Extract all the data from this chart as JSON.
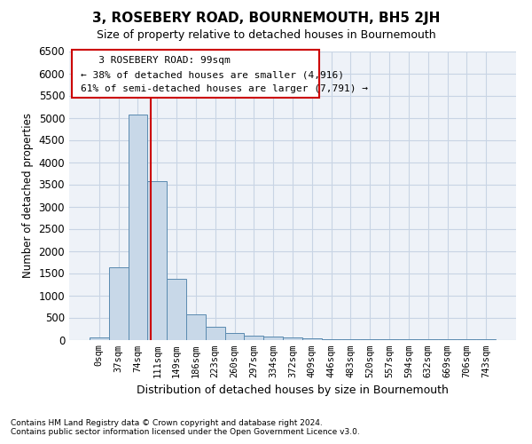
{
  "title": "3, ROSEBERY ROAD, BOURNEMOUTH, BH5 2JH",
  "subtitle": "Size of property relative to detached houses in Bournemouth",
  "xlabel": "Distribution of detached houses by size in Bournemouth",
  "ylabel": "Number of detached properties",
  "footnote1": "Contains HM Land Registry data © Crown copyright and database right 2024.",
  "footnote2": "Contains public sector information licensed under the Open Government Licence v3.0.",
  "bar_color": "#c8d8e8",
  "bar_edge_color": "#5a8ab0",
  "annotation_box_color": "#ffffff",
  "annotation_box_edge": "#cc0000",
  "red_line_color": "#cc0000",
  "grid_color": "#c8d4e4",
  "background_color": "#eef2f8",
  "categories": [
    "0sqm",
    "37sqm",
    "74sqm",
    "111sqm",
    "149sqm",
    "186sqm",
    "223sqm",
    "260sqm",
    "297sqm",
    "334sqm",
    "372sqm",
    "409sqm",
    "446sqm",
    "483sqm",
    "520sqm",
    "557sqm",
    "594sqm",
    "632sqm",
    "669sqm",
    "706sqm",
    "743sqm"
  ],
  "values": [
    55,
    1640,
    5070,
    3570,
    1370,
    580,
    285,
    145,
    100,
    75,
    55,
    40,
    20,
    12,
    8,
    5,
    3,
    2,
    2,
    1,
    1
  ],
  "ylim": [
    0,
    6500
  ],
  "yticks": [
    0,
    500,
    1000,
    1500,
    2000,
    2500,
    3000,
    3500,
    4000,
    4500,
    5000,
    5500,
    6000,
    6500
  ],
  "property_label": "3 ROSEBERY ROAD: 99sqm",
  "pct_smaller": "38% of detached houses are smaller (4,916)",
  "pct_larger": "61% of semi-detached houses are larger (7,791)",
  "red_line_x": 2.675,
  "ann_line1": "   3 ROSEBERY ROAD: 99sqm",
  "ann_line2": "← 38% of detached houses are smaller (4,916)",
  "ann_line3": "61% of semi-detached houses are larger (7,791) →"
}
